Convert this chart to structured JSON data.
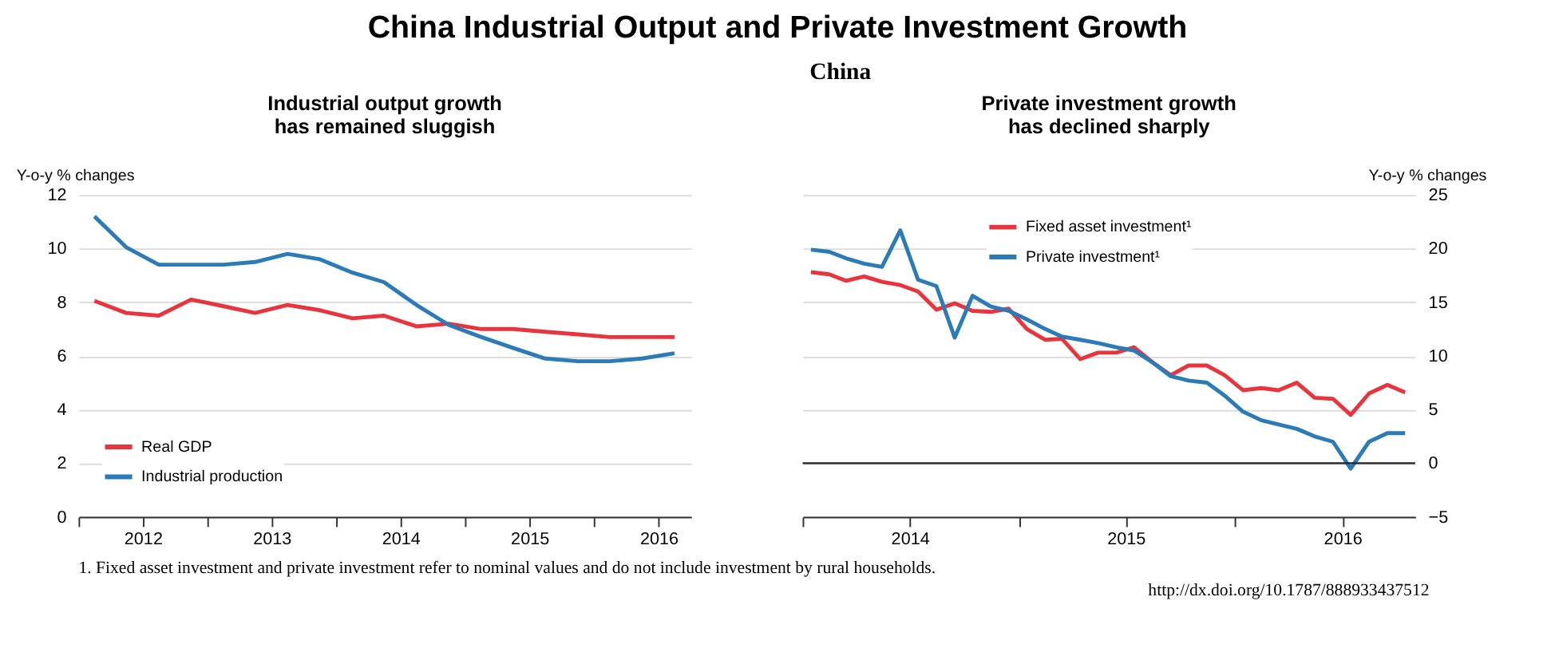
{
  "chart_data": [
    {
      "type": "other",
      "title": "China Industrial Output and Private Investment Growth",
      "subtitle": "China",
      "annotations": [
        "1.  Fixed asset investment and private investment refer to nominal values and do not include investment by rural households.",
        "http://dx.doi.org/10.1787/888933437512"
      ]
    },
    {
      "type": "line",
      "title": "Industrial output growth\nhas remained sluggish",
      "ylabel": "Y-o-y % changes",
      "legend": "bottom left",
      "grid": "y",
      "line_style": "solid",
      "x": [
        "2012-02-15",
        "2012-05-15",
        "2012-08-15",
        "2012-11-15",
        "2013-02-15",
        "2013-05-15",
        "2013-08-15",
        "2013-11-15",
        "2014-02-15",
        "2014-05-15",
        "2014-08-15",
        "2014-11-15",
        "2015-02-15",
        "2015-05-15",
        "2015-08-15",
        "2015-11-15",
        "2016-02-15",
        "2016-05-15",
        "2016-08-15"
      ],
      "xlim": [
        "2012-01-01",
        "2016-10-01"
      ],
      "xticks": [
        {
          "value": "2012-01-01",
          "label": null
        },
        {
          "value": "2012-07-01",
          "label": "2012"
        },
        {
          "value": "2013-01-01",
          "label": null
        },
        {
          "value": "2013-07-01",
          "label": "2013"
        },
        {
          "value": "2014-01-01",
          "label": null
        },
        {
          "value": "2014-07-01",
          "label": "2014"
        },
        {
          "value": "2015-01-01",
          "label": null
        },
        {
          "value": "2015-07-01",
          "label": "2015"
        },
        {
          "value": "2016-01-01",
          "label": null
        },
        {
          "value": "2016-07-01",
          "label": "2016"
        }
      ],
      "ylim": [
        0,
        12
      ],
      "yticks": [
        0,
        2,
        4,
        6,
        8,
        10,
        12
      ],
      "series": [
        {
          "name": "Real GDP",
          "color": "#e8343c",
          "values": [
            8.05,
            7.6,
            7.5,
            8.1,
            7.85,
            7.6,
            7.9,
            7.7,
            7.4,
            7.5,
            7.1,
            7.2,
            7.0,
            7.0,
            6.9,
            6.8,
            6.7,
            6.7,
            6.7
          ]
        },
        {
          "name": "Industrial production",
          "color": "#2a7bb8",
          "values": [
            11.2,
            10.05,
            9.4,
            9.4,
            9.4,
            9.5,
            9.8,
            9.6,
            9.1,
            8.75,
            7.9,
            7.15,
            6.7,
            6.3,
            5.9,
            5.8,
            5.8,
            5.9,
            6.1
          ]
        }
      ]
    },
    {
      "type": "line",
      "title": "Private investment growth\nhas declined sharply",
      "y2label": "Y-o-y % changes",
      "legend": "top",
      "grid": "y",
      "line_style": "solid",
      "x": [
        "2014-01-15",
        "2014-02-15",
        "2014-03-15",
        "2014-04-15",
        "2014-05-15",
        "2014-06-15",
        "2014-07-15",
        "2014-08-15",
        "2014-09-15",
        "2014-10-15",
        "2014-11-15",
        "2014-12-15",
        "2015-01-15",
        "2015-02-15",
        "2015-03-15",
        "2015-04-15",
        "2015-05-15",
        "2015-06-15",
        "2015-07-15",
        "2015-08-15",
        "2015-09-15",
        "2015-10-15",
        "2015-11-15",
        "2015-12-15",
        "2016-01-15",
        "2016-02-15",
        "2016-03-15",
        "2016-04-15",
        "2016-05-15",
        "2016-06-15",
        "2016-07-15",
        "2016-08-15",
        "2016-09-15",
        "2016-10-15"
      ],
      "xlim": [
        "2014-01-01",
        "2016-11-01"
      ],
      "xticks": [
        {
          "value": "2014-01-01",
          "label": null
        },
        {
          "value": "2014-07-01",
          "label": "2014"
        },
        {
          "value": "2015-01-01",
          "label": null
        },
        {
          "value": "2015-07-01",
          "label": "2015"
        },
        {
          "value": "2016-01-01",
          "label": null
        },
        {
          "value": "2016-07-01",
          "label": "2016"
        }
      ],
      "y2lim": [
        -5,
        25
      ],
      "y2ticks": [
        -5,
        0,
        5,
        10,
        15,
        20,
        25
      ],
      "ref_lines": [
        {
          "axis": "y2",
          "value": 0,
          "color": "#222222"
        }
      ],
      "series": [
        {
          "name": "Fixed asset investment¹",
          "color": "#e8343c",
          "axis": "y2",
          "values": [
            17.8,
            17.6,
            17.0,
            17.4,
            16.9,
            16.6,
            16.0,
            14.3,
            14.9,
            14.2,
            14.1,
            14.4,
            12.5,
            11.5,
            11.6,
            9.7,
            10.3,
            10.3,
            10.8,
            9.4,
            8.2,
            9.1,
            9.1,
            8.2,
            6.8,
            7.0,
            6.8,
            7.5,
            6.1,
            6.0,
            4.5,
            6.5,
            7.3,
            6.6
          ]
        },
        {
          "name": "Private investment¹",
          "color": "#2a7bb8",
          "axis": "y2",
          "values": [
            19.9,
            19.7,
            19.1,
            18.6,
            18.3,
            21.7,
            17.1,
            16.5,
            11.7,
            15.6,
            14.6,
            14.2,
            13.4,
            12.5,
            11.8,
            11.5,
            11.2,
            10.8,
            10.5,
            9.4,
            8.1,
            7.7,
            7.5,
            6.3,
            4.8,
            4.0,
            3.6,
            3.2,
            2.5,
            2.0,
            -0.5,
            2.0,
            2.8,
            2.8
          ]
        }
      ]
    }
  ]
}
